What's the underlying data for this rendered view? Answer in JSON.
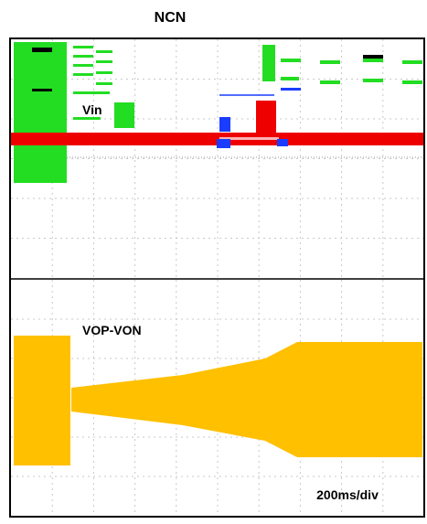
{
  "title": "NCN",
  "traces": [
    {
      "label": "Vin"
    },
    {
      "label": "VOP-VON"
    }
  ],
  "timebase": "200ms/div"
}
